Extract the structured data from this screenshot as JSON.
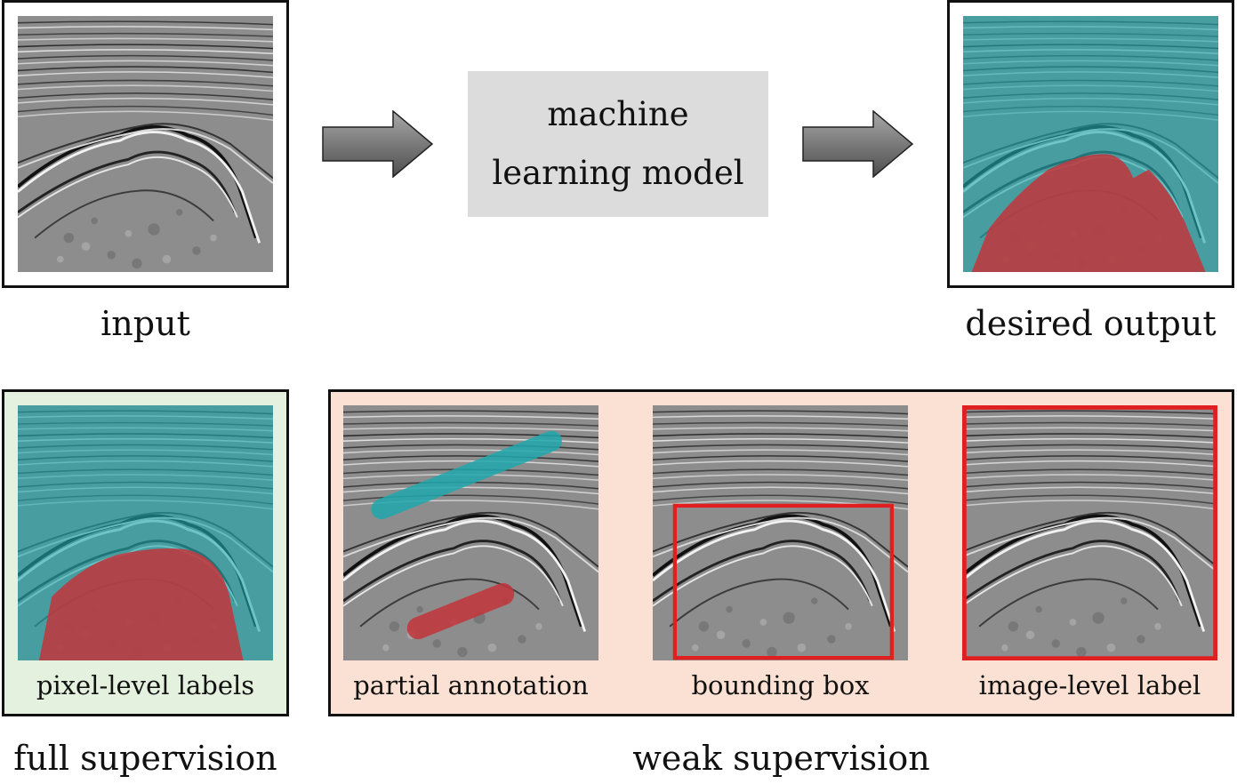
{
  "top_row": {
    "input_label": "input",
    "model_label_line1": "machine",
    "model_label_line2": "learning model",
    "output_label": "desired output"
  },
  "full_supervision": {
    "panel_caption": "pixel-level labels",
    "group_label": "full supervision",
    "background_color": "#e3f1de"
  },
  "weak_supervision": {
    "group_label": "weak supervision",
    "background_color": "#fae1d3",
    "panels": [
      {
        "caption": "partial annotation"
      },
      {
        "caption": "bounding box"
      },
      {
        "caption": "image-level label"
      }
    ]
  },
  "colors": {
    "class_a": "#1fa8ad",
    "class_b": "#c2353b",
    "annotation_box": "#e02020",
    "arrow_fill": "#8c8c8c",
    "model_fill": "#dcdcdc"
  }
}
